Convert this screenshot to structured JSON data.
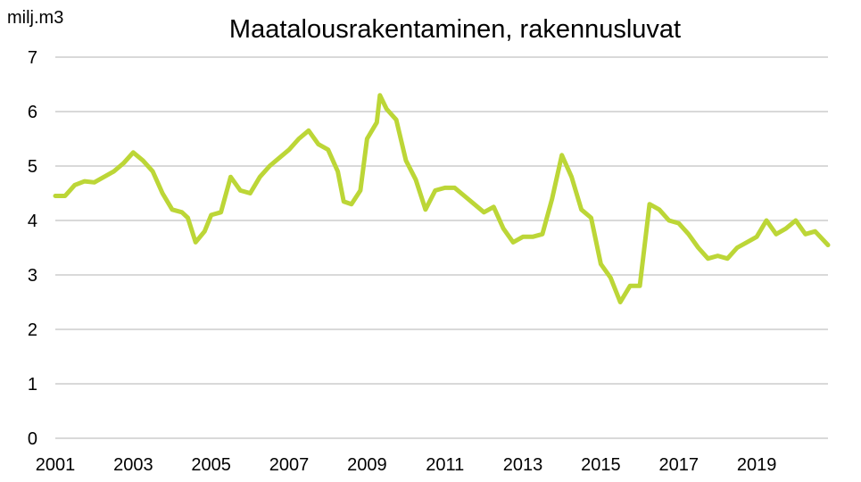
{
  "chart_data": {
    "type": "line",
    "title": "Maatalousrakentaminen, rakennusluvat",
    "unit_label": "milj.m3",
    "ylim": [
      0,
      7
    ],
    "y_ticks": [
      0,
      1,
      2,
      3,
      4,
      5,
      6,
      7
    ],
    "x_ticks": [
      2001,
      2003,
      2005,
      2007,
      2009,
      2011,
      2013,
      2015,
      2017,
      2019
    ],
    "xlim": [
      2001,
      2020.83
    ],
    "grid": true,
    "color": "#bcd637",
    "series": [
      {
        "x": [
          2001.0,
          2001.25,
          2001.5,
          2001.75,
          2002.0,
          2002.25,
          2002.5,
          2002.75,
          2003.0,
          2003.25,
          2003.5,
          2003.75,
          2004.0,
          2004.25,
          2004.4,
          2004.6,
          2004.83,
          2005.0,
          2005.25,
          2005.5,
          2005.75,
          2006.0,
          2006.25,
          2006.5,
          2006.75,
          2007.0,
          2007.25,
          2007.5,
          2007.75,
          2008.0,
          2008.25,
          2008.4,
          2008.6,
          2008.83,
          2009.0,
          2009.25,
          2009.33,
          2009.5,
          2009.75,
          2010.0,
          2010.25,
          2010.5,
          2010.75,
          2011.0,
          2011.25,
          2011.5,
          2011.75,
          2012.0,
          2012.25,
          2012.5,
          2012.75,
          2013.0,
          2013.25,
          2013.5,
          2013.75,
          2014.0,
          2014.25,
          2014.5,
          2014.75,
          2015.0,
          2015.25,
          2015.5,
          2015.75,
          2016.0,
          2016.25,
          2016.5,
          2016.75,
          2017.0,
          2017.25,
          2017.5,
          2017.75,
          2018.0,
          2018.25,
          2018.5,
          2018.75,
          2019.0,
          2019.25,
          2019.5,
          2019.75,
          2020.0,
          2020.25,
          2020.5,
          2020.83
        ],
        "values": [
          4.45,
          4.45,
          4.65,
          4.72,
          4.7,
          4.8,
          4.9,
          5.05,
          5.25,
          5.1,
          4.9,
          4.5,
          4.2,
          4.15,
          4.05,
          3.6,
          3.8,
          4.1,
          4.15,
          4.8,
          4.55,
          4.5,
          4.8,
          5.0,
          5.15,
          5.3,
          5.5,
          5.65,
          5.4,
          5.3,
          4.9,
          4.35,
          4.3,
          4.55,
          5.5,
          5.8,
          6.3,
          6.05,
          5.85,
          5.1,
          4.75,
          4.2,
          4.55,
          4.6,
          4.6,
          4.45,
          4.3,
          4.15,
          4.25,
          3.85,
          3.6,
          3.7,
          3.7,
          3.75,
          4.4,
          5.2,
          4.8,
          4.2,
          4.05,
          3.2,
          2.95,
          2.5,
          2.8,
          2.8,
          4.3,
          4.2,
          4.0,
          3.95,
          3.75,
          3.5,
          3.3,
          3.35,
          3.3,
          3.5,
          3.6,
          3.7,
          4.0,
          3.75,
          3.85,
          4.0,
          3.75,
          3.8,
          3.55
        ]
      }
    ]
  }
}
